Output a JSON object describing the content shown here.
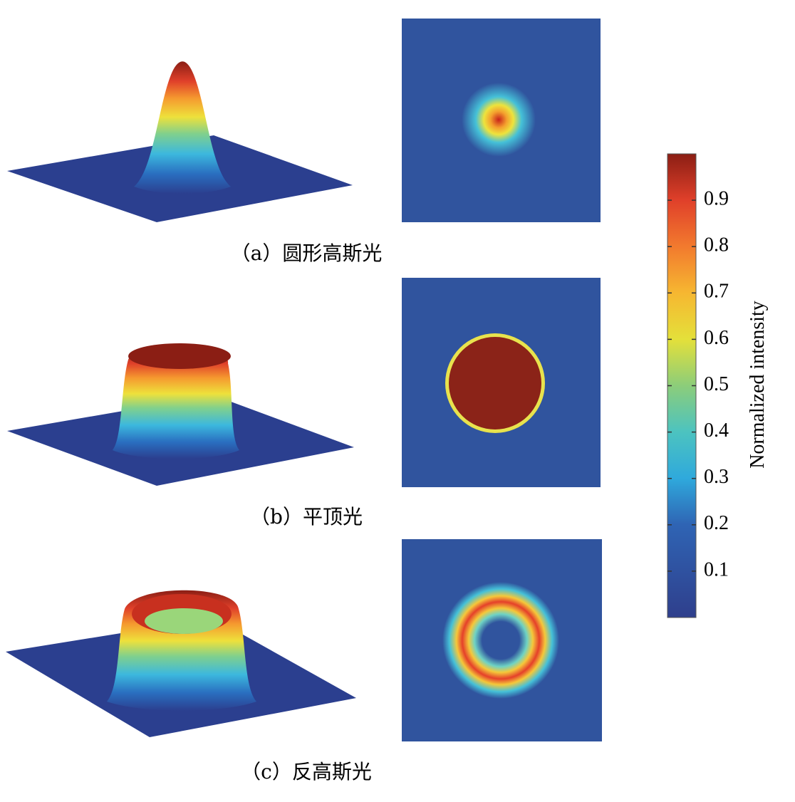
{
  "panels": [
    {
      "caption": "（a）圆形高斯光"
    },
    {
      "caption": "（b）平顶光"
    },
    {
      "caption": "（c）反高斯光"
    }
  ],
  "colorbar": {
    "label": "Normalized intensity",
    "lim": [
      0,
      1
    ],
    "ticks": [
      0.1,
      0.2,
      0.3,
      0.4,
      0.5,
      0.6,
      0.7,
      0.8,
      0.9
    ]
  }
}
